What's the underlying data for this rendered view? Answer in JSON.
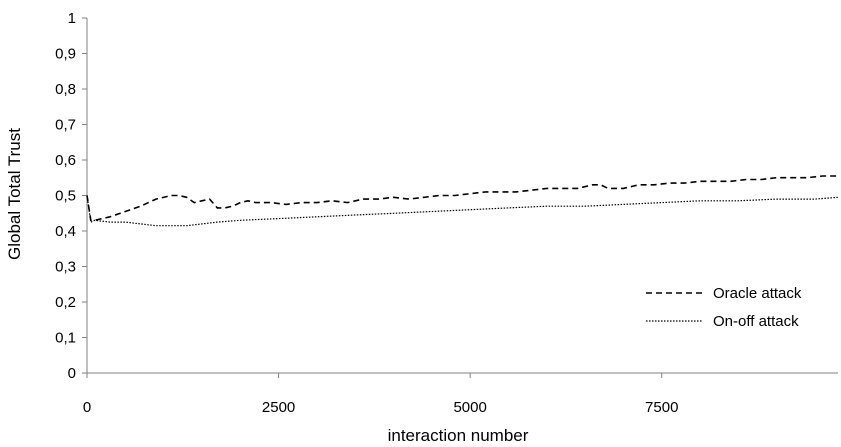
{
  "chart_data": {
    "type": "line",
    "title": "",
    "xlabel": "interaction number",
    "ylabel": "Global Total Trust",
    "xlim": [
      0,
      9800
    ],
    "ylim": [
      0,
      1
    ],
    "x_ticks": [
      0,
      2500,
      5000,
      7500
    ],
    "x_tick_labels": [
      "0",
      "2500",
      "5000",
      "7500"
    ],
    "y_ticks": [
      0,
      0.1,
      0.2,
      0.3,
      0.4,
      0.5,
      0.6,
      0.7,
      0.8,
      0.9,
      1
    ],
    "y_tick_labels": [
      "0",
      "0,1",
      "0,2",
      "0,3",
      "0,4",
      "0,5",
      "0,6",
      "0,7",
      "0,8",
      "0,9",
      "1"
    ],
    "grid": false,
    "legend_position": "right",
    "series": [
      {
        "name": "Oracle attack",
        "style": "dashed",
        "color": "#000000",
        "x": [
          0,
          50,
          100,
          300,
          500,
          700,
          900,
          1100,
          1200,
          1300,
          1400,
          1500,
          1600,
          1700,
          1800,
          1900,
          2000,
          2100,
          2200,
          2400,
          2600,
          2800,
          3000,
          3200,
          3400,
          3600,
          3800,
          4000,
          4200,
          4400,
          4600,
          4800,
          5000,
          5200,
          5400,
          5600,
          5800,
          6000,
          6200,
          6400,
          6600,
          6700,
          6800,
          7000,
          7200,
          7400,
          7600,
          7800,
          8000,
          8200,
          8400,
          8600,
          8800,
          9000,
          9200,
          9400,
          9600,
          9800
        ],
        "values": [
          0.5,
          0.43,
          0.43,
          0.44,
          0.455,
          0.47,
          0.49,
          0.5,
          0.5,
          0.495,
          0.48,
          0.485,
          0.49,
          0.465,
          0.465,
          0.47,
          0.48,
          0.485,
          0.48,
          0.48,
          0.475,
          0.48,
          0.48,
          0.485,
          0.48,
          0.49,
          0.49,
          0.495,
          0.49,
          0.495,
          0.5,
          0.5,
          0.505,
          0.51,
          0.51,
          0.51,
          0.515,
          0.52,
          0.52,
          0.52,
          0.53,
          0.53,
          0.52,
          0.52,
          0.53,
          0.53,
          0.535,
          0.535,
          0.54,
          0.54,
          0.54,
          0.545,
          0.545,
          0.55,
          0.55,
          0.55,
          0.555,
          0.555
        ]
      },
      {
        "name": "On-off attack",
        "style": "dotted",
        "color": "#000000",
        "x": [
          0,
          50,
          100,
          300,
          500,
          700,
          900,
          1100,
          1300,
          1500,
          1700,
          2000,
          2500,
          3000,
          3500,
          4000,
          4500,
          5000,
          5500,
          6000,
          6500,
          7000,
          7500,
          8000,
          8500,
          9000,
          9500,
          9800
        ],
        "values": [
          0.5,
          0.425,
          0.43,
          0.425,
          0.425,
          0.42,
          0.415,
          0.415,
          0.415,
          0.42,
          0.425,
          0.43,
          0.435,
          0.44,
          0.445,
          0.45,
          0.455,
          0.46,
          0.465,
          0.47,
          0.47,
          0.475,
          0.48,
          0.485,
          0.485,
          0.49,
          0.49,
          0.495
        ]
      }
    ]
  }
}
